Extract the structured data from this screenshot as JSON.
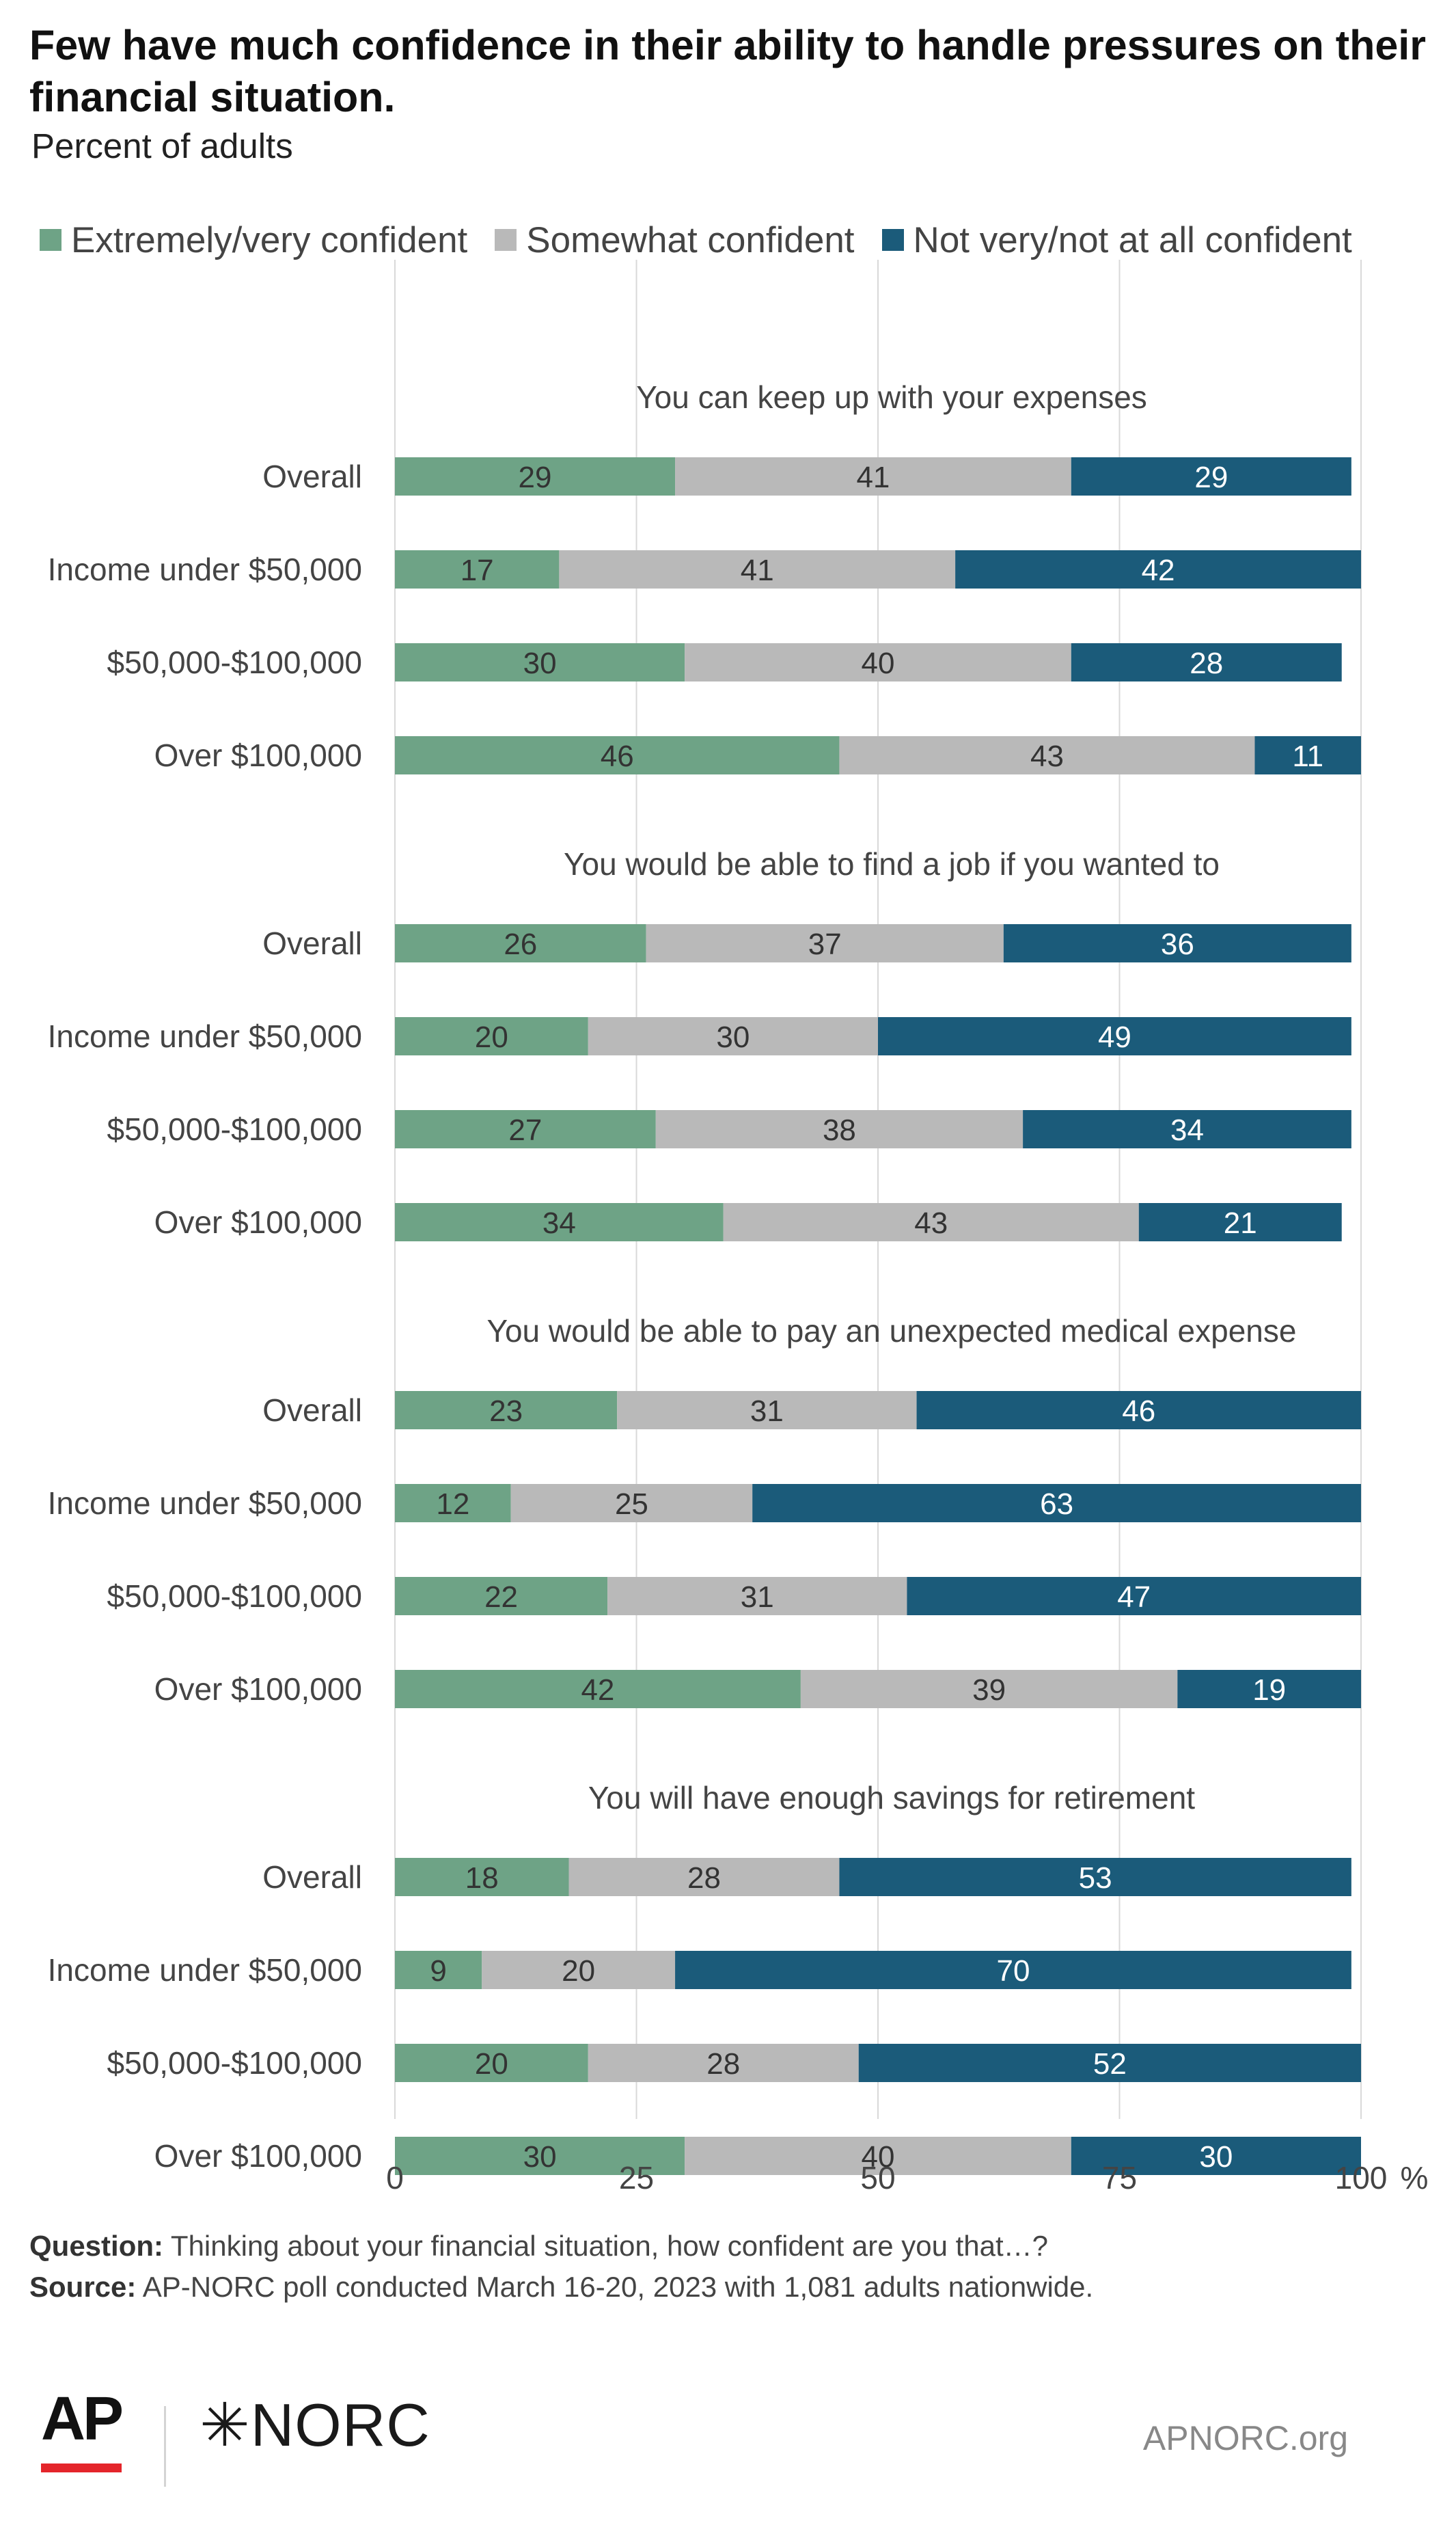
{
  "header": {
    "title": "Few have much confidence in their ability to handle pressures on their financial situation.",
    "subtitle": "Percent of adults"
  },
  "legend": [
    {
      "label": "Extremely/very confident",
      "color": "#6ea386"
    },
    {
      "label": "Somewhat confident",
      "color": "#b9b9b9"
    },
    {
      "label": "Not very/not at all confident",
      "color": "#1b5b7a"
    }
  ],
  "chart_data": {
    "type": "bar",
    "orientation": "horizontal",
    "stacked": true,
    "xlim": [
      0,
      100
    ],
    "xticks": [
      0,
      25,
      50,
      75,
      100
    ],
    "x_unit": "%",
    "grid": true,
    "legend_position": "top",
    "series_names": [
      "Extremely/very confident",
      "Somewhat confident",
      "Not very/not at all confident"
    ],
    "groups": [
      {
        "title": "You can keep up with your expenses",
        "rows": [
          {
            "label": "Overall",
            "values": [
              29,
              41,
              29
            ]
          },
          {
            "label": "Income under $50,000",
            "values": [
              17,
              41,
              42
            ]
          },
          {
            "label": "$50,000-$100,000",
            "values": [
              30,
              40,
              28
            ]
          },
          {
            "label": "Over $100,000",
            "values": [
              46,
              43,
              11
            ]
          }
        ]
      },
      {
        "title": "You would be able to find a job if you wanted to",
        "rows": [
          {
            "label": "Overall",
            "values": [
              26,
              37,
              36
            ]
          },
          {
            "label": "Income under $50,000",
            "values": [
              20,
              30,
              49
            ]
          },
          {
            "label": "$50,000-$100,000",
            "values": [
              27,
              38,
              34
            ]
          },
          {
            "label": "Over $100,000",
            "values": [
              34,
              43,
              21
            ]
          }
        ]
      },
      {
        "title": "You would be able to pay an unexpected medical expense",
        "rows": [
          {
            "label": "Overall",
            "values": [
              23,
              31,
              46
            ]
          },
          {
            "label": "Income under $50,000",
            "values": [
              12,
              25,
              63
            ]
          },
          {
            "label": "$50,000-$100,000",
            "values": [
              22,
              31,
              47
            ]
          },
          {
            "label": "Over $100,000",
            "values": [
              42,
              39,
              19
            ]
          }
        ]
      },
      {
        "title": "You will have enough savings for retirement",
        "rows": [
          {
            "label": "Overall",
            "values": [
              18,
              28,
              53
            ]
          },
          {
            "label": "Income under $50,000",
            "values": [
              9,
              20,
              70
            ]
          },
          {
            "label": "$50,000-$100,000",
            "values": [
              20,
              28,
              52
            ]
          },
          {
            "label": "Over $100,000",
            "values": [
              30,
              40,
              30
            ]
          }
        ]
      }
    ]
  },
  "footer": {
    "question_label": "Question:",
    "question_text": "Thinking about your financial situation, how confident are you that…?",
    "source_label": "Source:",
    "source_text": "AP-NORC poll conducted March 16-20, 2023 with 1,081 adults nationwide."
  },
  "branding": {
    "ap": "AP",
    "norc": "✳NORC",
    "site": "APNORC.org"
  }
}
